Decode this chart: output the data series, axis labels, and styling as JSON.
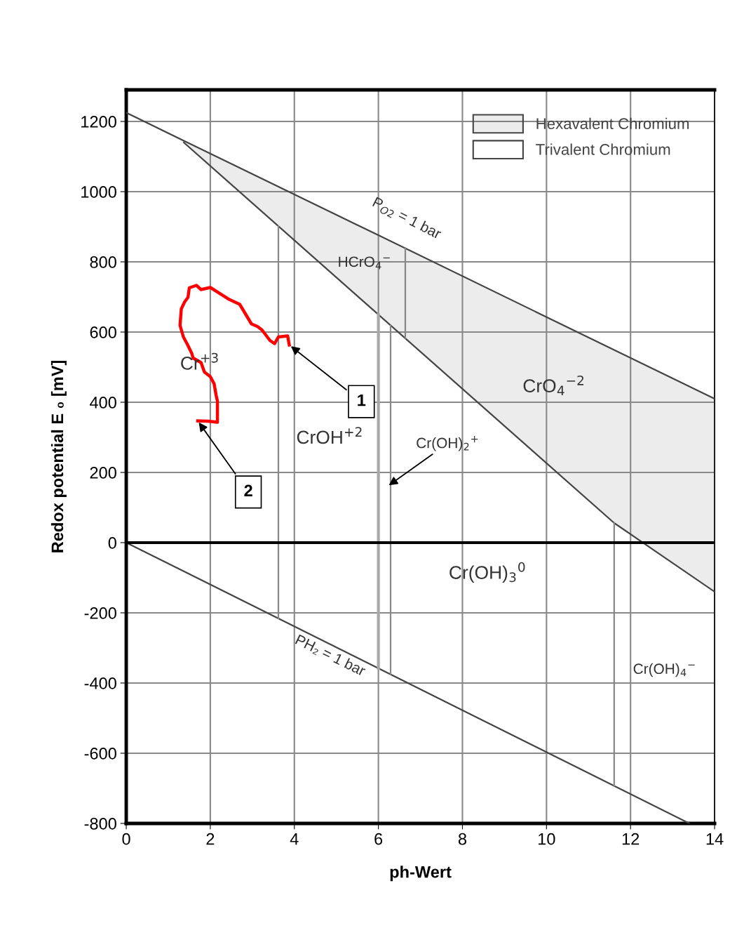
{
  "chart_data": {
    "type": "line",
    "xlabel": "ph-Wert",
    "ylabel": "Redox potential E ₀ [mV]",
    "xlim": [
      0,
      14
    ],
    "ylim": [
      -800,
      1290
    ],
    "xticks": [
      0,
      2,
      4,
      6,
      8,
      10,
      12,
      14
    ],
    "yticks": [
      -800,
      -600,
      -400,
      -200,
      0,
      200,
      400,
      600,
      800,
      1000,
      1200
    ],
    "grid": true,
    "legend": "top right",
    "line_style": "solid",
    "marker": "none",
    "ref_lines": [
      {
        "axis": "y",
        "value": 0,
        "color": "#000000"
      }
    ],
    "series": [
      {
        "name": "Hexavalent Chromium",
        "color": "#444444",
        "x": [
          0,
          1.37,
          6.0,
          11.61,
          14
        ],
        "values": [
          1225,
          1145,
          876,
          549,
          410
        ],
        "lower": [
          1225,
          1140,
          650,
          56,
          -140
        ],
        "upper": [
          1225,
          1145,
          876,
          549,
          410
        ]
      },
      {
        "name": "Trivalent Chromium",
        "color": "#444444",
        "x": [
          1.37,
          11.61,
          14
        ],
        "values": [
          1140,
          56,
          -140
        ]
      },
      {
        "color": "#444444",
        "x": [
          0,
          13.4
        ],
        "values": [
          0,
          -800
        ]
      },
      {
        "color": "#888888",
        "x": [
          3.62,
          3.62
        ],
        "values": [
          -216,
          902
        ]
      },
      {
        "color": "#a8a8a8",
        "x": [
          6.0,
          6.0
        ],
        "values": [
          -358,
          650
        ]
      },
      {
        "color": "#888888",
        "x": [
          6.29,
          6.29
        ],
        "values": [
          -375,
          619
        ]
      },
      {
        "color": "#888888",
        "x": [
          6.64,
          6.64
        ],
        "values": [
          583,
          839
        ]
      },
      {
        "color": "#888888",
        "x": [
          11.61,
          11.61
        ],
        "values": [
          -693,
          56
        ]
      },
      {
        "color": "#ff0000",
        "x": [
          3.88,
          3.84,
          3.62,
          3.53,
          3.42,
          3.23,
          3.12,
          2.98,
          2.7,
          2.45,
          2.28,
          2.0,
          1.78,
          1.67,
          1.5,
          1.47,
          1.39,
          1.31,
          1.28,
          1.36,
          1.45,
          1.56,
          1.59,
          1.78,
          1.86,
          2.0,
          2.09,
          2.14,
          2.17,
          2.17,
          1.95,
          1.7
        ],
        "values": [
          563,
          589,
          586,
          567,
          576,
          606,
          616,
          623,
          679,
          693,
          706,
          727,
          721,
          733,
          726,
          699,
          686,
          666,
          619,
          586,
          566,
          539,
          526,
          513,
          486,
          473,
          453,
          419,
          403,
          343,
          346,
          347
        ]
      }
    ],
    "annotations": [
      "Cr$^{+3}$",
      "CrOH$^{+2}$",
      "HCrO$_{4}$$^{−}$",
      "P$_{O2}$ = 1 bar",
      "CrO$_{4}$$^{−2}$",
      {
        "text": "Cr(OH)$_{2}$$^{+}$",
        "x": 6.21,
        "y": 160
      },
      "Cr(OH)$_{3}$$^{0}$",
      "PH₂ = 1 bar",
      "Cr(OH)$_{4}$$^{−}$",
      {
        "text": "1",
        "x": 3.88,
        "y": 563
      },
      {
        "text": "2",
        "x": 1.7,
        "y": 347
      }
    ]
  }
}
